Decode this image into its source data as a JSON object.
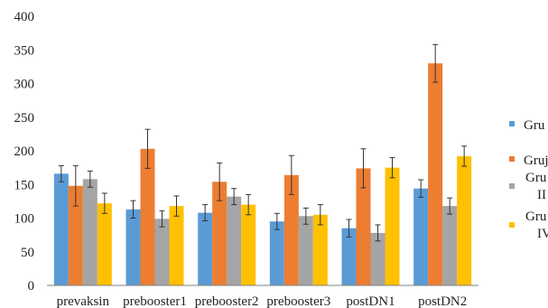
{
  "chart_data": {
    "type": "bar",
    "categories": [
      "prevaksin",
      "prebooster1",
      "prebooster2",
      "prebooster3",
      "postDN1",
      "postDN2"
    ],
    "ylim": [
      0,
      400
    ],
    "yticks": [
      0,
      50,
      100,
      150,
      200,
      250,
      300,
      350,
      400
    ],
    "grid": false,
    "legend_position": "right",
    "series": [
      {
        "name": "Gru",
        "color": "#5B9BD5",
        "values": [
          166,
          113,
          108,
          95,
          85,
          144
        ],
        "errors": [
          12,
          13,
          12,
          12,
          13,
          13
        ]
      },
      {
        "name": "Gruj",
        "color": "#ED7D31",
        "values": [
          148,
          203,
          154,
          164,
          174,
          330
        ],
        "errors": [
          30,
          29,
          28,
          29,
          29,
          28
        ]
      },
      {
        "name": "Gru II",
        "color": "#A5A5A5",
        "values": [
          158,
          99,
          132,
          103,
          78,
          118
        ],
        "errors": [
          12,
          12,
          12,
          12,
          12,
          12
        ]
      },
      {
        "name": "Gru IV",
        "color": "#FFC000",
        "values": [
          122,
          118,
          120,
          105,
          175,
          192
        ],
        "errors": [
          15,
          15,
          15,
          15,
          15,
          15
        ]
      }
    ]
  }
}
